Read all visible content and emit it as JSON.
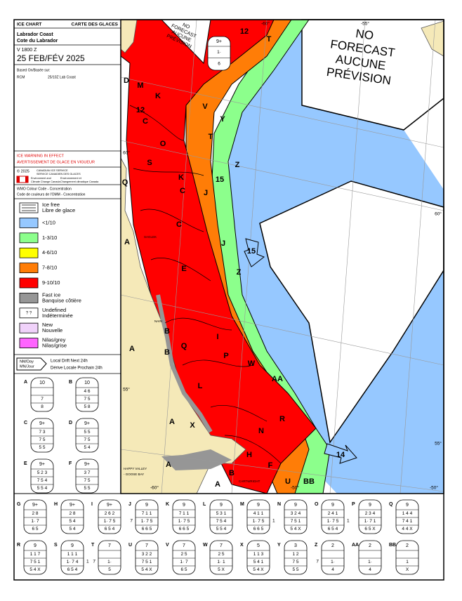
{
  "header": {
    "title_en": "ICE CHART",
    "title_fr": "CARTE DES GLACES",
    "region_en": "Labrador Coast",
    "region_fr": "Cote du Labrador",
    "valid": "V 1800 Z",
    "date": "25 FEB/FÉV 2025",
    "based_on": "Based On/Basée sur:",
    "source": "RCM",
    "source_detail": "25/10Z Lab Coast"
  },
  "warning": [
    "ICE WARNING IN EFFECT",
    "AVERTISSEMENT DE GLACE EN VIGUEUR"
  ],
  "agency": {
    "copyright": "© 2025",
    "lines": [
      "CANADIAN ICE SERVICE",
      "SERVICE CANADIEN DES GLACES"
    ],
    "dept_en": [
      "Environment and",
      "Climate Change Canada"
    ],
    "dept_fr": [
      "Environnement et",
      "Changement climatique Canada"
    ]
  },
  "legend": {
    "title": [
      "WMO Colour Code - Concentration",
      "Code de couleurs de l'OMM - Concentration"
    ],
    "items": [
      {
        "label": [
          "Ice free",
          "Libre de glace"
        ],
        "color": "#ffffff",
        "symbol": "lines"
      },
      {
        "label": [
          "<1/10"
        ],
        "color": "#96c8ff"
      },
      {
        "label": [
          "1-3/10"
        ],
        "color": "#8cff8c"
      },
      {
        "label": [
          "4-6/10"
        ],
        "color": "#ffff00"
      },
      {
        "label": [
          "7-8/10"
        ],
        "color": "#ff7d07"
      },
      {
        "label": [
          "9-10/10"
        ],
        "color": "#ff0000"
      },
      {
        "label": [
          "Fast ice",
          "Banquise côtière"
        ],
        "color": "#969696"
      },
      {
        "label": [
          "Undefined",
          "Indéterminée"
        ],
        "color": "#ffffff",
        "mark": "? ?"
      },
      {
        "label": [
          "New",
          "Nouvelle"
        ],
        "color": "#f0d2fa"
      },
      {
        "label": [
          "Nilas/grey",
          "Nilas/grise"
        ],
        "color": "#ff64ff"
      }
    ]
  },
  "drift": {
    "unit": [
      "NM/Day",
      "MN/Jour"
    ],
    "label": [
      "Local Drift Next 24h",
      "Dérive Locale Prochain 24h"
    ]
  },
  "eggs": [
    {
      "id": "A",
      "total": "10",
      "rows": [
        null,
        "7",
        "8"
      ]
    },
    {
      "id": "B",
      "total": "10",
      "rows": [
        "4 6",
        "7 5",
        "5 8"
      ]
    },
    {
      "id": "C",
      "total": "9+",
      "rows": [
        "7 3",
        "7 5",
        "5 5"
      ]
    },
    {
      "id": "D",
      "total": "9+",
      "rows": [
        "5 5",
        "7 5",
        "5 4"
      ]
    },
    {
      "id": "E",
      "total": "9+",
      "rows": [
        "5 2 3",
        "7 5 4",
        "5 5 4"
      ]
    },
    {
      "id": "F",
      "total": "9+",
      "rows": [
        "3 7",
        "7 5",
        "5 5"
      ]
    },
    {
      "id": "G",
      "total": "9+",
      "rows": [
        "2 8",
        "1· 7",
        "6 5"
      ]
    },
    {
      "id": "H",
      "total": "9+",
      "rows": [
        "2 8",
        "5 4",
        "5 4"
      ]
    },
    {
      "id": "I",
      "total": "9+",
      "rows": [
        "2 6 2",
        "1· 7 5",
        "6 5 4"
      ]
    },
    {
      "id": "J",
      "total": "9",
      "rows": [
        "7 1 1",
        "1· 7 5",
        "6 6 5"
      ],
      "side_left": "7"
    },
    {
      "id": "K",
      "total": "9",
      "rows": [
        "7 1 1",
        "1· 7 5",
        "6 6 5"
      ]
    },
    {
      "id": "L",
      "total": "9",
      "rows": [
        "5 3 1",
        "7 5 4",
        "5 5 4"
      ]
    },
    {
      "id": "M",
      "total": "9",
      "rows": [
        "4 1 1",
        "1· 7 5",
        "6 6 5"
      ],
      "side_right": "1"
    },
    {
      "id": "N",
      "total": "9",
      "rows": [
        "3 2 4",
        "7 5 1",
        "5 4 X"
      ]
    },
    {
      "id": "O",
      "total": "9",
      "rows": [
        "2 4 1",
        "1· 7 5",
        "6 5 4"
      ],
      "side_right": "1"
    },
    {
      "id": "P",
      "total": "9",
      "rows": [
        "2 3 4",
        "1· 7 1",
        "6 5 X"
      ]
    },
    {
      "id": "Q",
      "total": "9",
      "rows": [
        "1 4 4",
        "7 4 1",
        "4 4 X"
      ]
    },
    {
      "id": "R",
      "total": "9",
      "rows": [
        "1 1 7",
        "7 5 1",
        "5 4 X"
      ]
    },
    {
      "id": "S",
      "total": "9",
      "rows": [
        "1 1 1",
        "1· 7 4",
        "6 5 4"
      ],
      "side_right": "1"
    },
    {
      "id": "T",
      "total": "7",
      "rows": [
        null,
        "1·",
        "5"
      ],
      "side_left": "7"
    },
    {
      "id": "U",
      "total": "7",
      "rows": [
        "3 2 2",
        "7 5 1",
        "5 4 X"
      ]
    },
    {
      "id": "V",
      "total": "7",
      "rows": [
        "2 5",
        "1· 7",
        "6 5"
      ]
    },
    {
      "id": "W",
      "total": "7",
      "rows": [
        "2 5",
        "1· 1",
        "5 X"
      ]
    },
    {
      "id": "X",
      "total": "5",
      "rows": [
        "1 1 3",
        "5 4 1",
        "5 4 X"
      ]
    },
    {
      "id": "Y",
      "total": "3",
      "rows": [
        "1 2",
        "7 5",
        "5 5"
      ]
    },
    {
      "id": "Z",
      "total": "2",
      "rows": [
        null,
        "1·",
        "4"
      ],
      "side_left": "7"
    },
    {
      "id": "AA",
      "total": "2",
      "rows": [
        null,
        "1·",
        "4"
      ]
    },
    {
      "id": "BB",
      "total": "2",
      "rows": [
        null,
        "1",
        "X"
      ]
    }
  ],
  "map": {
    "no_forecast": [
      "NO",
      "FORECAST",
      "AUCUNE",
      "PRÉVISION"
    ],
    "no_forecast_small": [
      "NO",
      "FORECAST",
      "AUCUNE",
      "PRÉVISION"
    ],
    "egg": {
      "total": "9+",
      "rows": [
        "1·",
        "6"
      ]
    },
    "labels": [
      "M",
      "D",
      "K",
      "12",
      "C",
      "O",
      "S",
      "C",
      "K",
      "J",
      "C",
      "J",
      "E",
      "Z",
      "Y",
      "V",
      "T",
      "T",
      "12",
      "15",
      "15",
      "Z",
      "B",
      "B",
      "A",
      "Q",
      "A",
      "I",
      "Q",
      "P",
      "W",
      "AA",
      "L",
      "R",
      "N",
      "A",
      "X",
      "A",
      "H",
      "F",
      "B",
      "U",
      "BB",
      "A",
      "14"
    ],
    "coords": [
      "-55°",
      "-60°",
      "60°",
      "60°",
      "55°",
      "55°",
      "-60°",
      "-50°",
      "-50°"
    ],
    "places": [
      "SAGLEK",
      "NAIN",
      "HAPPY VALLEY",
      "- GOOSE BAY",
      "CARTWRIGHT"
    ]
  }
}
